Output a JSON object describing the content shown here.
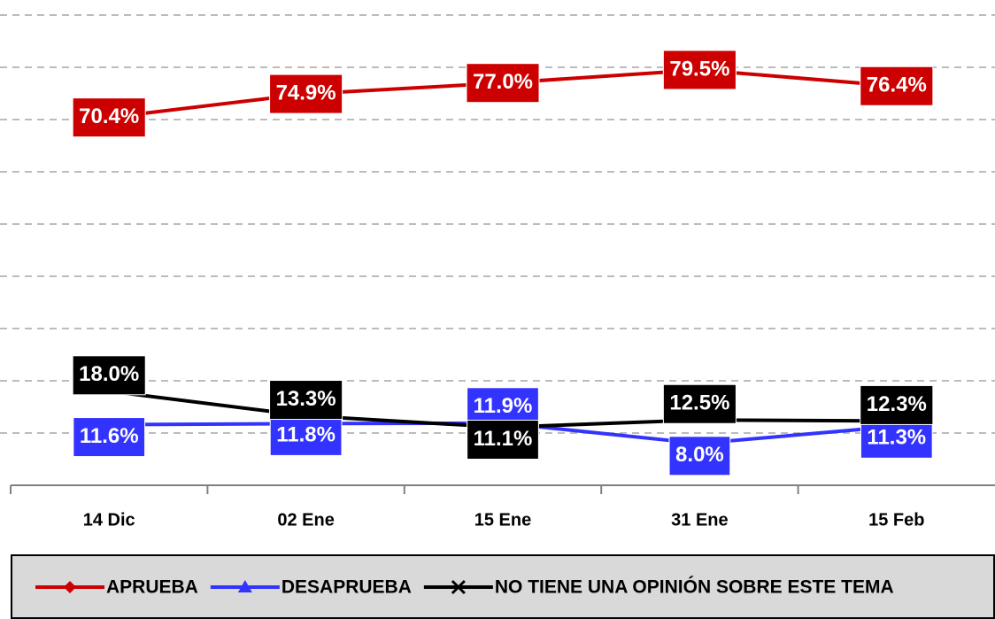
{
  "chart_data": {
    "type": "line",
    "categories": [
      "14 Dic",
      "02 Ene",
      "15 Ene",
      "31 Ene",
      "15 Feb"
    ],
    "series": [
      {
        "name": "APRUEBA",
        "color": "#cc0000",
        "marker": "diamond",
        "values": [
          70.4,
          74.9,
          77.0,
          79.5,
          76.4
        ],
        "value_labels": [
          "70.4%",
          "74.9%",
          "77.0%",
          "79.5%",
          "76.4%"
        ]
      },
      {
        "name": "DESAPRUEBA",
        "color": "#3333ff",
        "marker": "triangle",
        "values": [
          11.6,
          11.8,
          11.9,
          8.0,
          11.3
        ],
        "value_labels": [
          "11.6%",
          "11.8%",
          "11.9%",
          "8.0%",
          "11.3%"
        ]
      },
      {
        "name": "NO TIENE UNA OPINIÓN SOBRE ESTE TEMA",
        "color": "#000000",
        "marker": "x",
        "values": [
          18.0,
          13.3,
          11.1,
          12.5,
          12.3
        ],
        "value_labels": [
          "18.0%",
          "13.3%",
          "11.1%",
          "12.5%",
          "12.3%"
        ]
      }
    ],
    "ylim": [
      0,
      90
    ],
    "yticks": [
      0,
      10,
      20,
      30,
      40,
      50,
      60,
      70,
      80,
      90
    ],
    "grid": true,
    "legend": "bottom"
  }
}
